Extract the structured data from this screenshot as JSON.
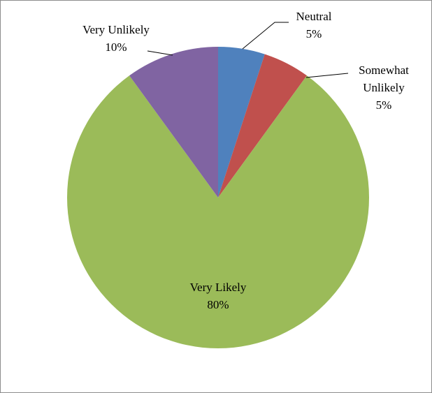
{
  "chart_data": {
    "type": "pie",
    "categories": [
      "Neutral",
      "Somewhat Unlikely",
      "Very Likely",
      "Very Unlikely"
    ],
    "values": [
      5,
      5,
      80,
      10
    ],
    "value_labels": [
      "5%",
      "5%",
      "80%",
      "10%"
    ],
    "colors": [
      "#4f81bd",
      "#c0504d",
      "#9bbb59",
      "#8064a2"
    ]
  }
}
